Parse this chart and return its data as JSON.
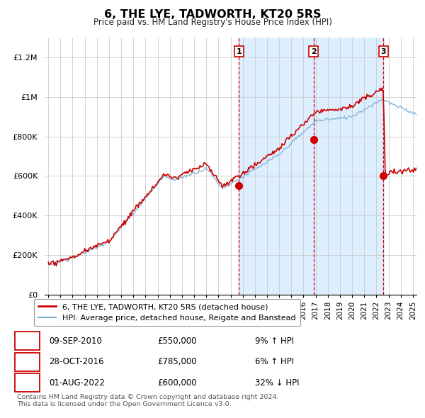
{
  "title": "6, THE LYE, TADWORTH, KT20 5RS",
  "subtitle": "Price paid vs. HM Land Registry's House Price Index (HPI)",
  "ylim": [
    0,
    1300000
  ],
  "yticks": [
    0,
    200000,
    400000,
    600000,
    800000,
    1000000,
    1200000
  ],
  "ytick_labels": [
    "£0",
    "£200K",
    "£400K",
    "£600K",
    "£800K",
    "£1M",
    "£1.2M"
  ],
  "sale_prices": [
    550000,
    785000,
    600000
  ],
  "sale_hpi_pct": [
    "9% ↑ HPI",
    "6% ↑ HPI",
    "32% ↓ HPI"
  ],
  "sale_date_labels": [
    "09-SEP-2010",
    "28-OCT-2016",
    "01-AUG-2022"
  ],
  "sale_price_labels": [
    "£550,000",
    "£785,000",
    "£600,000"
  ],
  "sale_yr": [
    2010.69,
    2016.83,
    2022.58
  ],
  "legend_line1": "6, THE LYE, TADWORTH, KT20 5RS (detached house)",
  "legend_line2": "HPI: Average price, detached house, Reigate and Banstead",
  "footer": "Contains HM Land Registry data © Crown copyright and database right 2024.\nThis data is licensed under the Open Government Licence v3.0.",
  "red_color": "#cc0000",
  "blue_color": "#7eafd4",
  "shade_color": "#ddeeff",
  "grid_color": "#cccccc",
  "background_color": "#ffffff",
  "xmin": 1994.7,
  "xmax": 2025.3
}
